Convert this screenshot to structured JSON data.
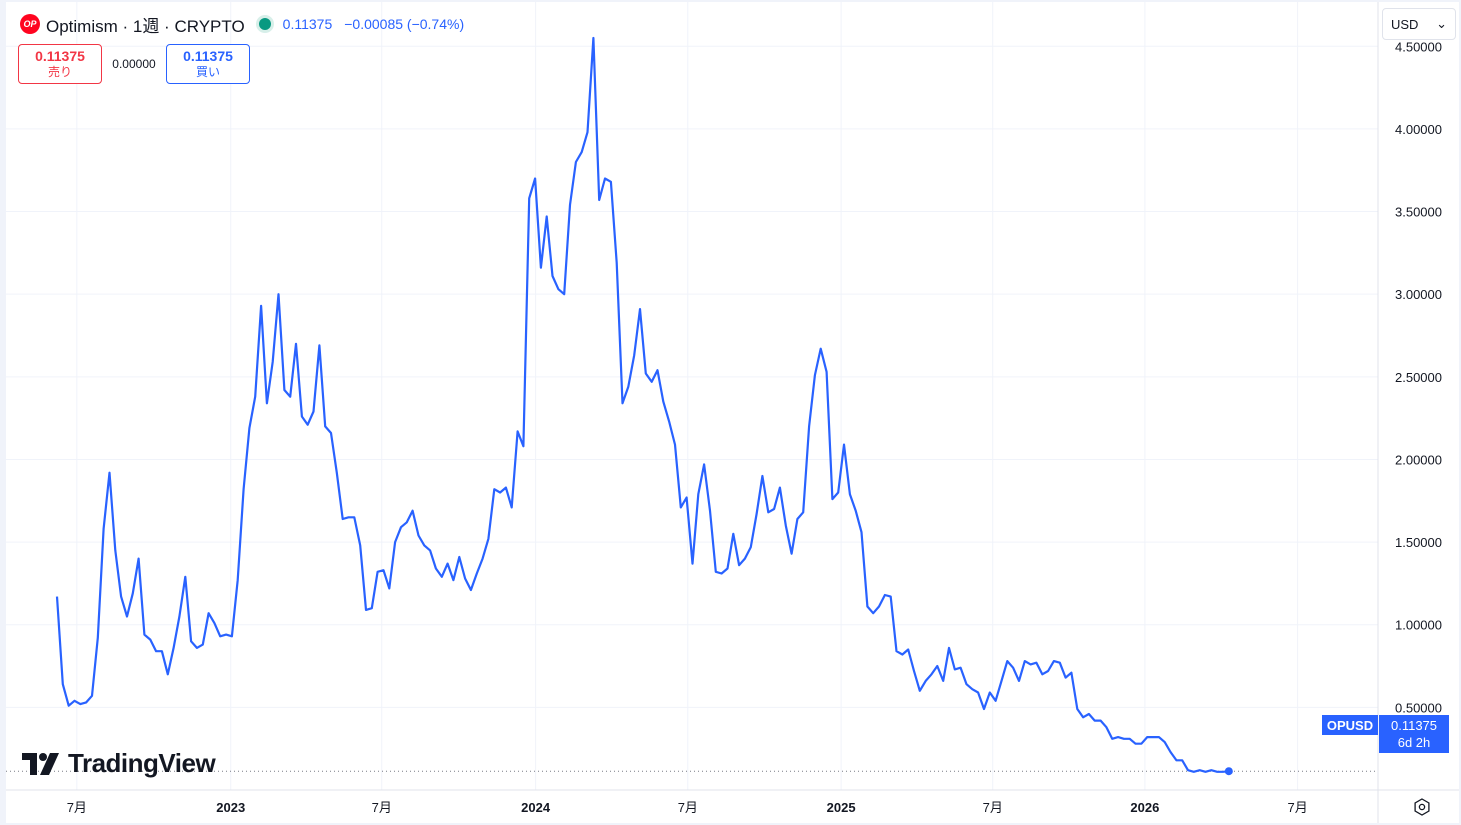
{
  "header": {
    "logo_text": "OP",
    "title": "Optimism · 1週 · CRYPTO",
    "price": "0.11375",
    "change": "−0.00085 (−0.74%)"
  },
  "trade": {
    "sell_value": "0.11375",
    "sell_label": "売り",
    "spread": "0.00000",
    "buy_value": "0.11375",
    "buy_label": "買い"
  },
  "currency": {
    "value": "USD",
    "chevron": "⌄"
  },
  "price_tag": {
    "symbol": "OPUSD",
    "price": "0.11375",
    "countdown": "6d 2h"
  },
  "branding": {
    "name": "TradingView"
  },
  "colors": {
    "line": "#2962ff",
    "sell": "#f23645",
    "buy": "#2962ff",
    "grid": "#f0f3fa"
  },
  "chart_data": {
    "type": "line",
    "x_unit": "weeks",
    "x_start": "2022-06",
    "ylim": [
      0.0,
      4.78
    ],
    "grid": true,
    "y_ticks": [
      {
        "value": 4.5,
        "label": "4.50000"
      },
      {
        "value": 4.0,
        "label": "4.00000"
      },
      {
        "value": 3.5,
        "label": "3.50000"
      },
      {
        "value": 3.0,
        "label": "3.00000"
      },
      {
        "value": 2.5,
        "label": "2.50000"
      },
      {
        "value": 2.0,
        "label": "2.00000"
      },
      {
        "value": 1.5,
        "label": "1.50000"
      },
      {
        "value": 1.0,
        "label": "1.00000"
      },
      {
        "value": 0.5,
        "label": "0.50000"
      }
    ],
    "x_ticks": [
      {
        "week": 3.4,
        "label": "7月",
        "bold": false
      },
      {
        "week": 29.8,
        "label": "2023",
        "bold": true
      },
      {
        "week": 55.7,
        "label": "7月",
        "bold": false
      },
      {
        "week": 82.1,
        "label": "2024",
        "bold": true
      },
      {
        "week": 108.2,
        "label": "7月",
        "bold": false
      },
      {
        "week": 134.5,
        "label": "2025",
        "bold": true
      },
      {
        "week": 160.5,
        "label": "7月",
        "bold": false
      },
      {
        "week": 186.6,
        "label": "2026",
        "bold": true
      },
      {
        "week": 212.8,
        "label": "7月",
        "bold": false
      }
    ],
    "last_value": 0.11375,
    "series": [
      {
        "values": [
          1.17,
          0.64,
          0.51,
          0.54,
          0.52,
          0.53,
          0.57,
          0.92,
          1.58,
          1.92,
          1.45,
          1.17,
          1.05,
          1.19,
          1.4,
          0.94,
          0.91,
          0.84,
          0.84,
          0.7,
          0.86,
          1.05,
          1.29,
          0.9,
          0.86,
          0.88,
          1.07,
          1.01,
          0.93,
          0.94,
          0.93,
          1.27,
          1.82,
          2.19,
          2.38,
          2.93,
          2.34,
          2.59,
          3.0,
          2.42,
          2.38,
          2.7,
          2.26,
          2.21,
          2.29,
          2.69,
          2.2,
          2.16,
          1.92,
          1.64,
          1.65,
          1.65,
          1.48,
          1.09,
          1.1,
          1.32,
          1.33,
          1.22,
          1.5,
          1.59,
          1.62,
          1.69,
          1.54,
          1.48,
          1.45,
          1.34,
          1.29,
          1.37,
          1.27,
          1.41,
          1.28,
          1.21,
          1.31,
          1.4,
          1.52,
          1.82,
          1.8,
          1.83,
          1.71,
          2.17,
          2.08,
          3.58,
          3.7,
          3.16,
          3.47,
          3.11,
          3.03,
          3.0,
          3.54,
          3.8,
          3.86,
          3.98,
          4.55,
          3.57,
          3.7,
          3.68,
          3.19,
          2.34,
          2.44,
          2.63,
          2.91,
          2.52,
          2.47,
          2.54,
          2.35,
          2.23,
          2.09,
          1.71,
          1.77,
          1.37,
          1.79,
          1.97,
          1.69,
          1.32,
          1.31,
          1.34,
          1.55,
          1.36,
          1.4,
          1.47,
          1.67,
          1.9,
          1.68,
          1.7,
          1.83,
          1.6,
          1.43,
          1.64,
          1.68,
          2.2,
          2.51,
          2.67,
          2.53,
          1.76,
          1.8,
          2.09,
          1.79,
          1.69,
          1.56,
          1.11,
          1.07,
          1.11,
          1.18,
          1.17,
          0.84,
          0.82,
          0.85,
          0.72,
          0.6,
          0.66,
          0.7,
          0.75,
          0.66,
          0.86,
          0.73,
          0.74,
          0.64,
          0.61,
          0.59,
          0.49,
          0.59,
          0.54,
          0.66,
          0.78,
          0.74,
          0.66,
          0.78,
          0.76,
          0.77,
          0.7,
          0.72,
          0.78,
          0.77,
          0.68,
          0.71,
          0.49,
          0.44,
          0.46,
          0.42,
          0.42,
          0.38,
          0.31,
          0.32,
          0.31,
          0.31,
          0.28,
          0.28,
          0.32,
          0.32,
          0.32,
          0.29,
          0.23,
          0.18,
          0.18,
          0.12,
          0.11,
          0.12,
          0.11,
          0.12,
          0.11,
          0.11,
          0.114
        ]
      }
    ]
  }
}
